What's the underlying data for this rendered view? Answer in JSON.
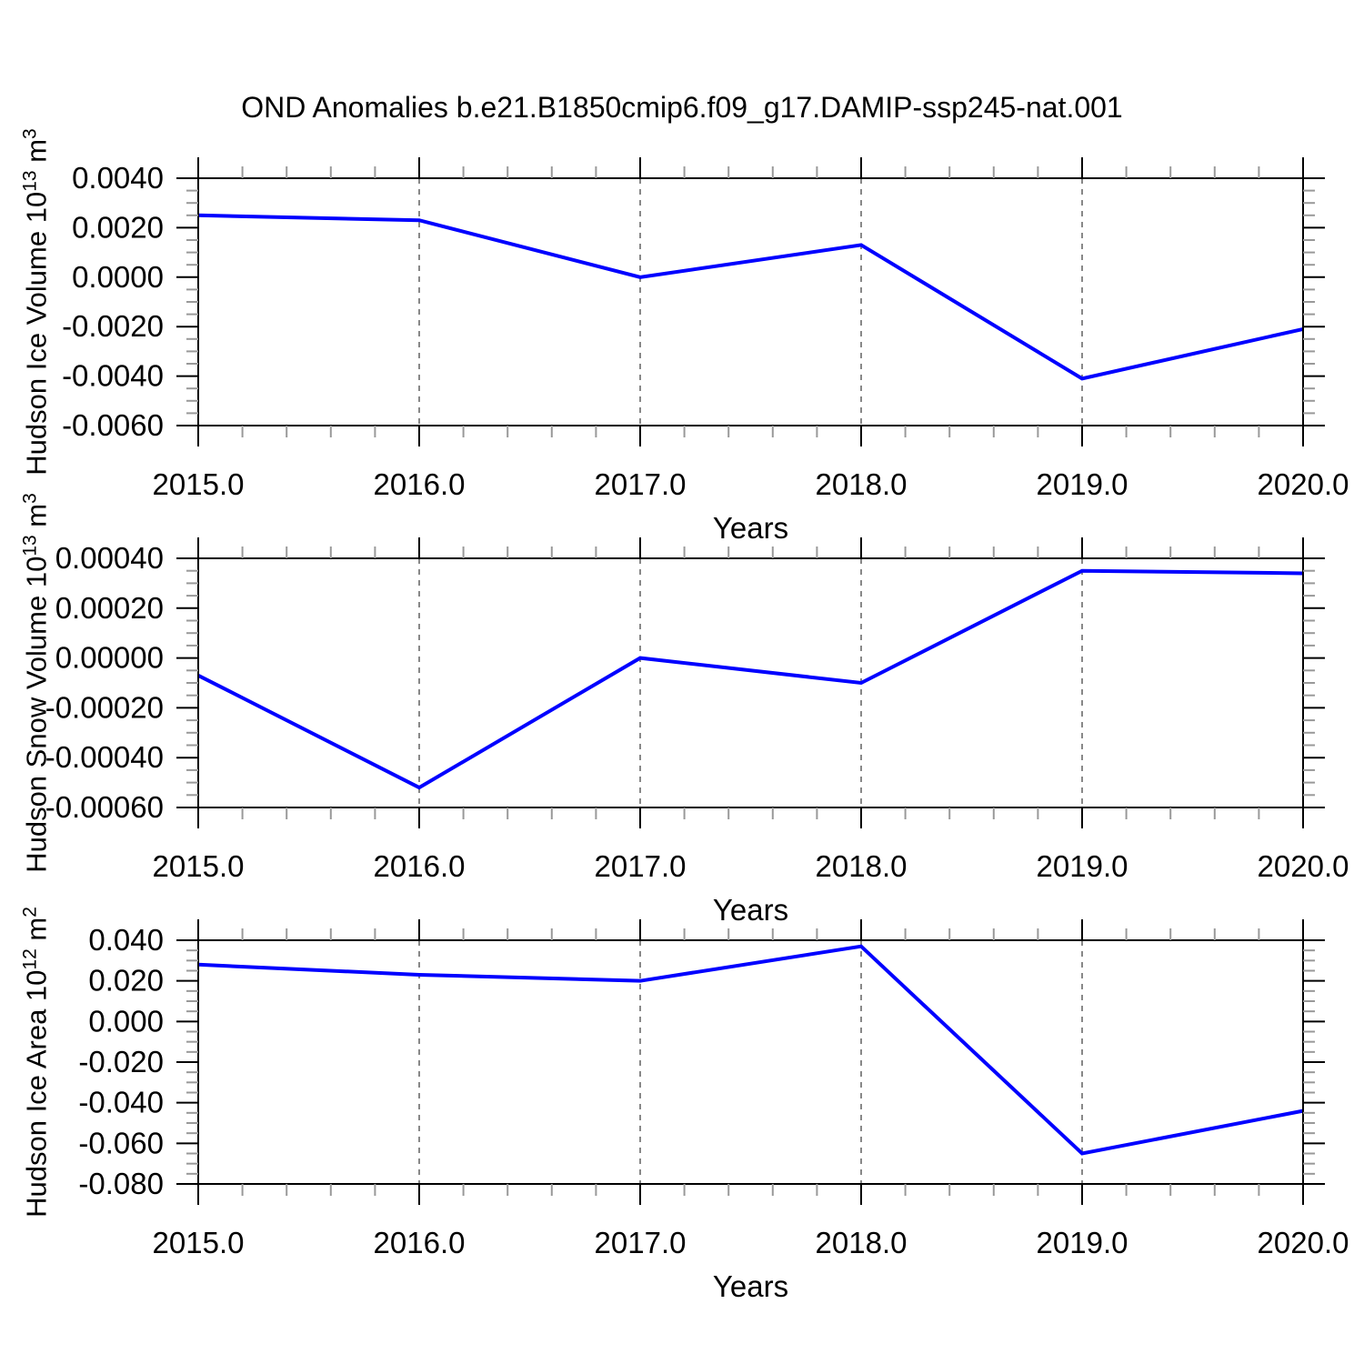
{
  "title": "OND Anomalies b.e21.B1850cmip6.f09_g17.DAMIP-ssp245-nat.001",
  "colors": {
    "background": "#ffffff",
    "line": "#0000ff",
    "axis": "#000000",
    "minor_tick": "#999999",
    "grid": "#888888",
    "text": "#000000"
  },
  "chart_data": [
    {
      "type": "line",
      "ylabel": {
        "prefix": "Hudson Ice Volume 10",
        "exponent": "13",
        "unit": " m",
        "unit_exponent": "3"
      },
      "xlabel": "Years",
      "x": [
        2015,
        2016,
        2017,
        2018,
        2019,
        2020
      ],
      "values": [
        0.0025,
        0.0023,
        0.0,
        0.0013,
        -0.0041,
        -0.0021
      ],
      "xlim": [
        2015,
        2020
      ],
      "ylim": [
        -0.006,
        0.004
      ],
      "xticks": [
        2015,
        2016,
        2017,
        2018,
        2019,
        2020
      ],
      "xtick_labels": [
        "2015.0",
        "2016.0",
        "2017.0",
        "2018.0",
        "2019.0",
        "2020.0"
      ],
      "yticks": [
        0.004,
        0.002,
        0.0,
        -0.002,
        -0.004,
        -0.006
      ],
      "ytick_labels": [
        "0.0040",
        "0.0020",
        "0.0000",
        "-0.0020",
        "-0.0040",
        "-0.0060"
      ],
      "x_minor_per_interval": 4,
      "y_minor_per_interval": 3,
      "grid_x": [
        2016,
        2017,
        2018,
        2019
      ],
      "grid_style": "dashed",
      "legend": null
    },
    {
      "type": "line",
      "ylabel": {
        "prefix": "Hudson Snow Volume 10",
        "exponent": "13",
        "unit": " m",
        "unit_exponent": "3"
      },
      "xlabel": "Years",
      "x": [
        2015,
        2016,
        2017,
        2018,
        2019,
        2020
      ],
      "values": [
        -7e-05,
        -0.00052,
        0.0,
        -0.0001,
        0.00035,
        0.00034
      ],
      "xlim": [
        2015,
        2020
      ],
      "ylim": [
        -0.0006,
        0.0004
      ],
      "xticks": [
        2015,
        2016,
        2017,
        2018,
        2019,
        2020
      ],
      "xtick_labels": [
        "2015.0",
        "2016.0",
        "2017.0",
        "2018.0",
        "2019.0",
        "2020.0"
      ],
      "yticks": [
        0.0004,
        0.0002,
        0.0,
        -0.0002,
        -0.0004,
        -0.0006
      ],
      "ytick_labels": [
        "0.00040",
        "0.00020",
        "0.00000",
        "-0.00020",
        "-0.00040",
        "-0.00060"
      ],
      "x_minor_per_interval": 4,
      "y_minor_per_interval": 3,
      "grid_x": [
        2016,
        2017,
        2018,
        2019
      ],
      "grid_style": "dashed",
      "legend": null
    },
    {
      "type": "line",
      "ylabel": {
        "prefix": "Hudson Ice Area 10",
        "exponent": "12",
        "unit": " m",
        "unit_exponent": "2"
      },
      "xlabel": "Years",
      "x": [
        2015,
        2016,
        2017,
        2018,
        2019,
        2020
      ],
      "values": [
        0.028,
        0.023,
        0.02,
        0.037,
        -0.065,
        -0.044
      ],
      "xlim": [
        2015,
        2020
      ],
      "ylim": [
        -0.08,
        0.04
      ],
      "xticks": [
        2015,
        2016,
        2017,
        2018,
        2019,
        2020
      ],
      "xtick_labels": [
        "2015.0",
        "2016.0",
        "2017.0",
        "2018.0",
        "2019.0",
        "2020.0"
      ],
      "yticks": [
        0.04,
        0.02,
        0.0,
        -0.02,
        -0.04,
        -0.06,
        -0.08
      ],
      "ytick_labels": [
        "0.040",
        "0.020",
        "0.000",
        "-0.020",
        "-0.040",
        "-0.060",
        "-0.080"
      ],
      "x_minor_per_interval": 4,
      "y_minor_per_interval": 3,
      "grid_x": [
        2016,
        2017,
        2018,
        2019
      ],
      "grid_style": "dashed",
      "legend": null
    }
  ]
}
